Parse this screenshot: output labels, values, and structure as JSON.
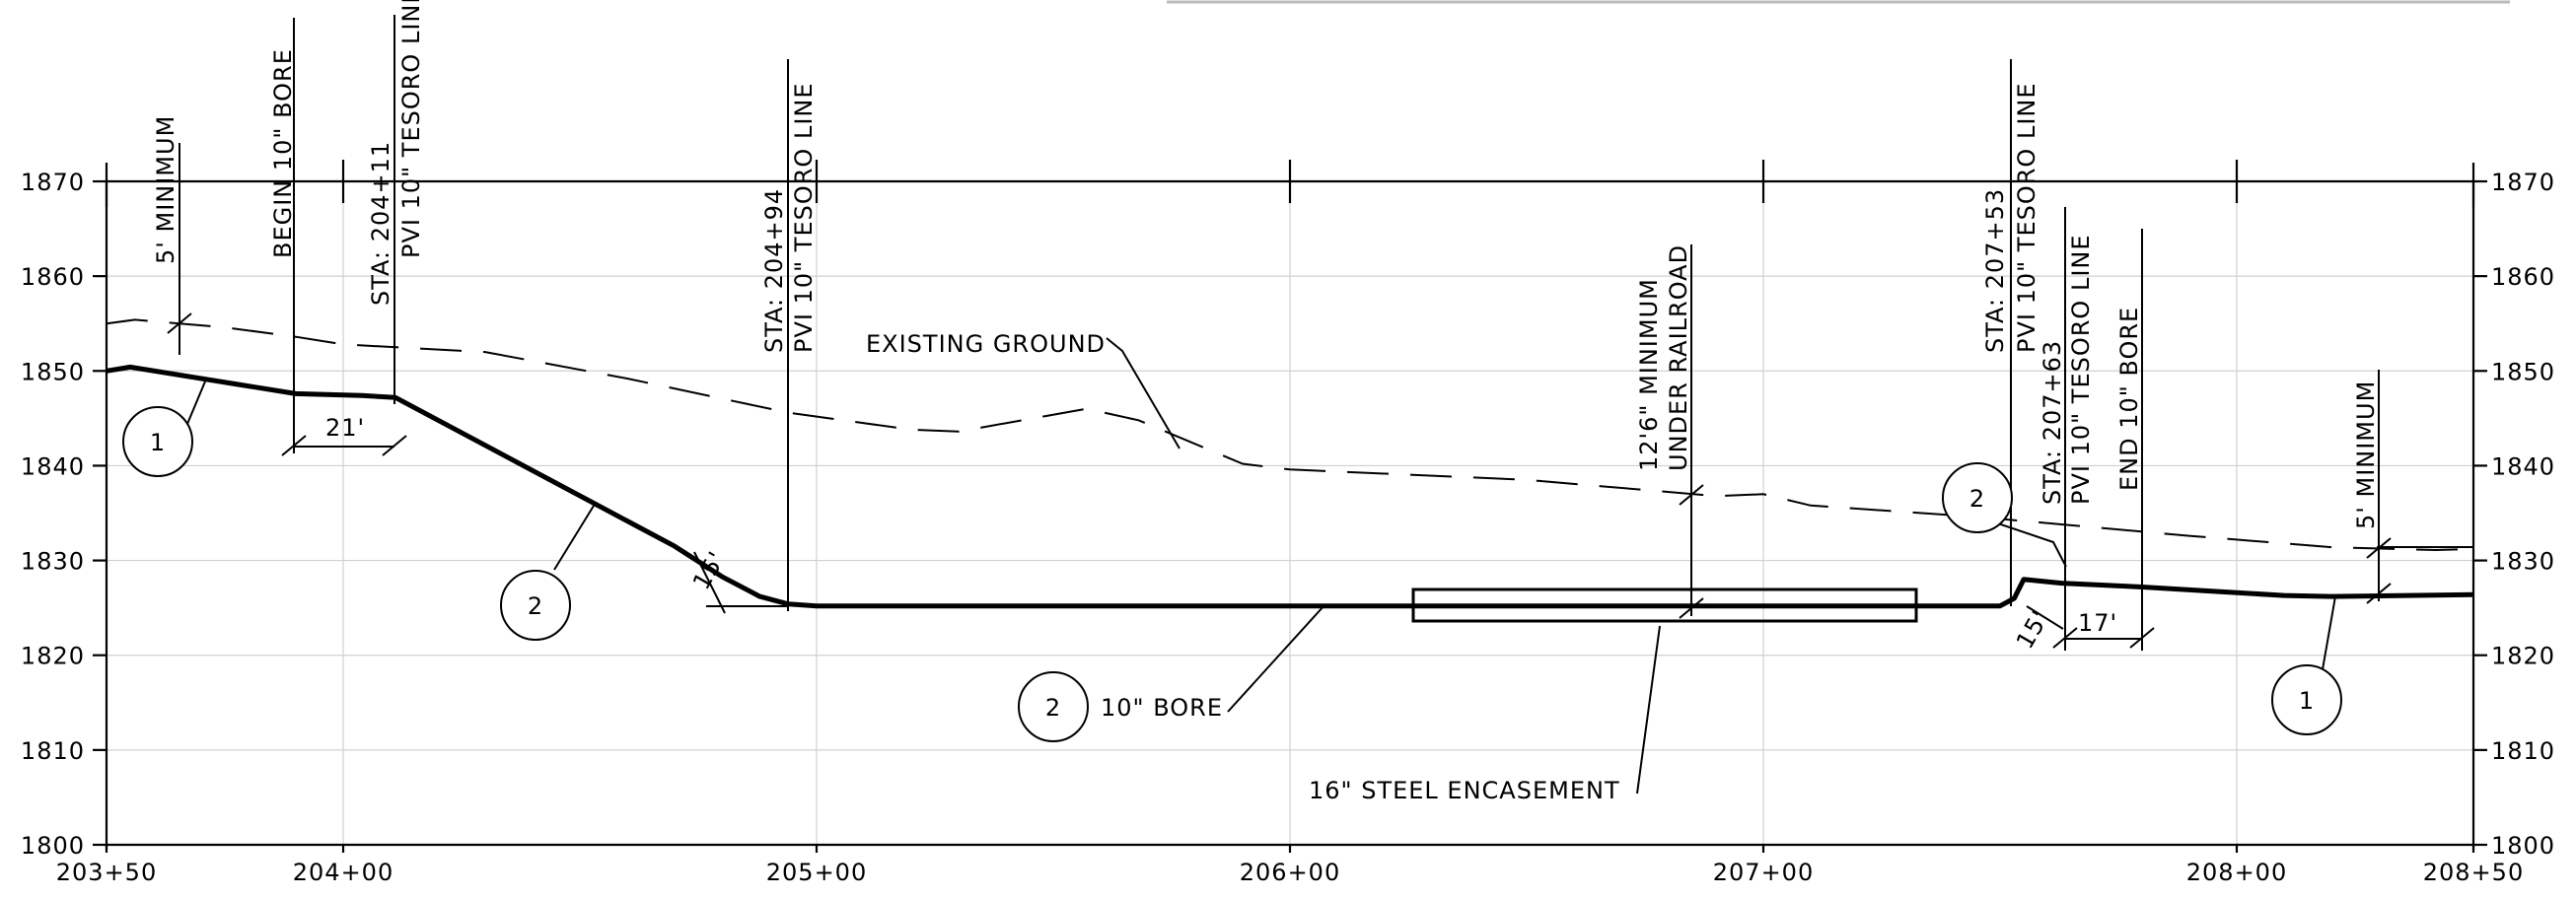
{
  "chart_data": {
    "type": "line",
    "xlabel": "",
    "ylabel": "",
    "x_tick_labels": [
      "203+50",
      "204+00",
      "205+00",
      "206+00",
      "207+00",
      "208+00",
      "208+50"
    ],
    "y_tick_labels": [
      "1800",
      "1810",
      "1820",
      "1830",
      "1840",
      "1850",
      "1860",
      "1870"
    ],
    "xlim": [
      20350,
      20850
    ],
    "ylim": [
      1800,
      1870
    ],
    "grid": true,
    "series": [
      {
        "key": "proposed_10_bore",
        "style": "thick-solid",
        "points": [
          [
            20350,
            1850
          ],
          [
            20355,
            1850.4
          ],
          [
            20390,
            1847.6
          ],
          [
            20404,
            1847.4
          ],
          [
            20411,
            1847.2
          ],
          [
            20470,
            1831.5
          ],
          [
            20480,
            1828.3
          ],
          [
            20488,
            1826.2
          ],
          [
            20494,
            1825.4
          ],
          [
            20500,
            1825.2
          ],
          [
            20600,
            1825.2
          ],
          [
            20700,
            1825.2
          ],
          [
            20750,
            1825.2
          ],
          [
            20753,
            1826.0
          ],
          [
            20755,
            1828.0
          ],
          [
            20763,
            1827.6
          ],
          [
            20780,
            1827.2
          ],
          [
            20810,
            1826.3
          ],
          [
            20820,
            1826.2
          ],
          [
            20850,
            1826.4
          ]
        ]
      },
      {
        "key": "existing_ground",
        "style": "dashed",
        "points": [
          [
            20350,
            1855
          ],
          [
            20356,
            1855.4
          ],
          [
            20375,
            1854.6
          ],
          [
            20390,
            1853.6
          ],
          [
            20400,
            1852.8
          ],
          [
            20430,
            1852.0
          ],
          [
            20460,
            1849.2
          ],
          [
            20494,
            1845.6
          ],
          [
            20520,
            1843.8
          ],
          [
            20530,
            1843.6
          ],
          [
            20557,
            1846.0
          ],
          [
            20568,
            1844.8
          ],
          [
            20590,
            1840.2
          ],
          [
            20600,
            1839.6
          ],
          [
            20650,
            1838.5
          ],
          [
            20690,
            1836.8
          ],
          [
            20700,
            1837.0
          ],
          [
            20710,
            1835.8
          ],
          [
            20745,
            1834.6
          ],
          [
            20763,
            1833.8
          ],
          [
            20790,
            1832.6
          ],
          [
            20820,
            1831.4
          ],
          [
            20842,
            1831.1
          ],
          [
            20850,
            1831.2
          ]
        ]
      }
    ],
    "annotations": {
      "min_5_left": "5' MINIMUM",
      "begin_bore": "BEGIN 10\" BORE",
      "pvi_1_sta": "STA: 204+11",
      "pvi_1_line": "PVI 10\" TESORO LINE",
      "pvi_2_sta": "STA: 204+94",
      "pvi_2_line": "PVI 10\" TESORO LINE",
      "existing_ground": "EXISTING GROUND",
      "railroad_min": "12'6\" MINIMUM",
      "railroad_under": "UNDER RAILROAD",
      "pvi_3_sta": "STA: 207+53",
      "pvi_3_line": "PVI 10\" TESORO LINE",
      "pvi_4_sta": "STA: 207+63",
      "pvi_4_line": "PVI 10\" TESORO LINE",
      "end_bore": "END 10\" BORE",
      "min_5_right": "5' MINIMUM",
      "dim_21": "21'",
      "dim_15_left": "15'",
      "dim_15_right": "15'",
      "dim_17": "17'",
      "bore_label": "10\" BORE",
      "encasement": "16\" STEEL ENCASEMENT"
    },
    "callouts": [
      "1",
      "2",
      "2",
      "2",
      "1"
    ]
  }
}
